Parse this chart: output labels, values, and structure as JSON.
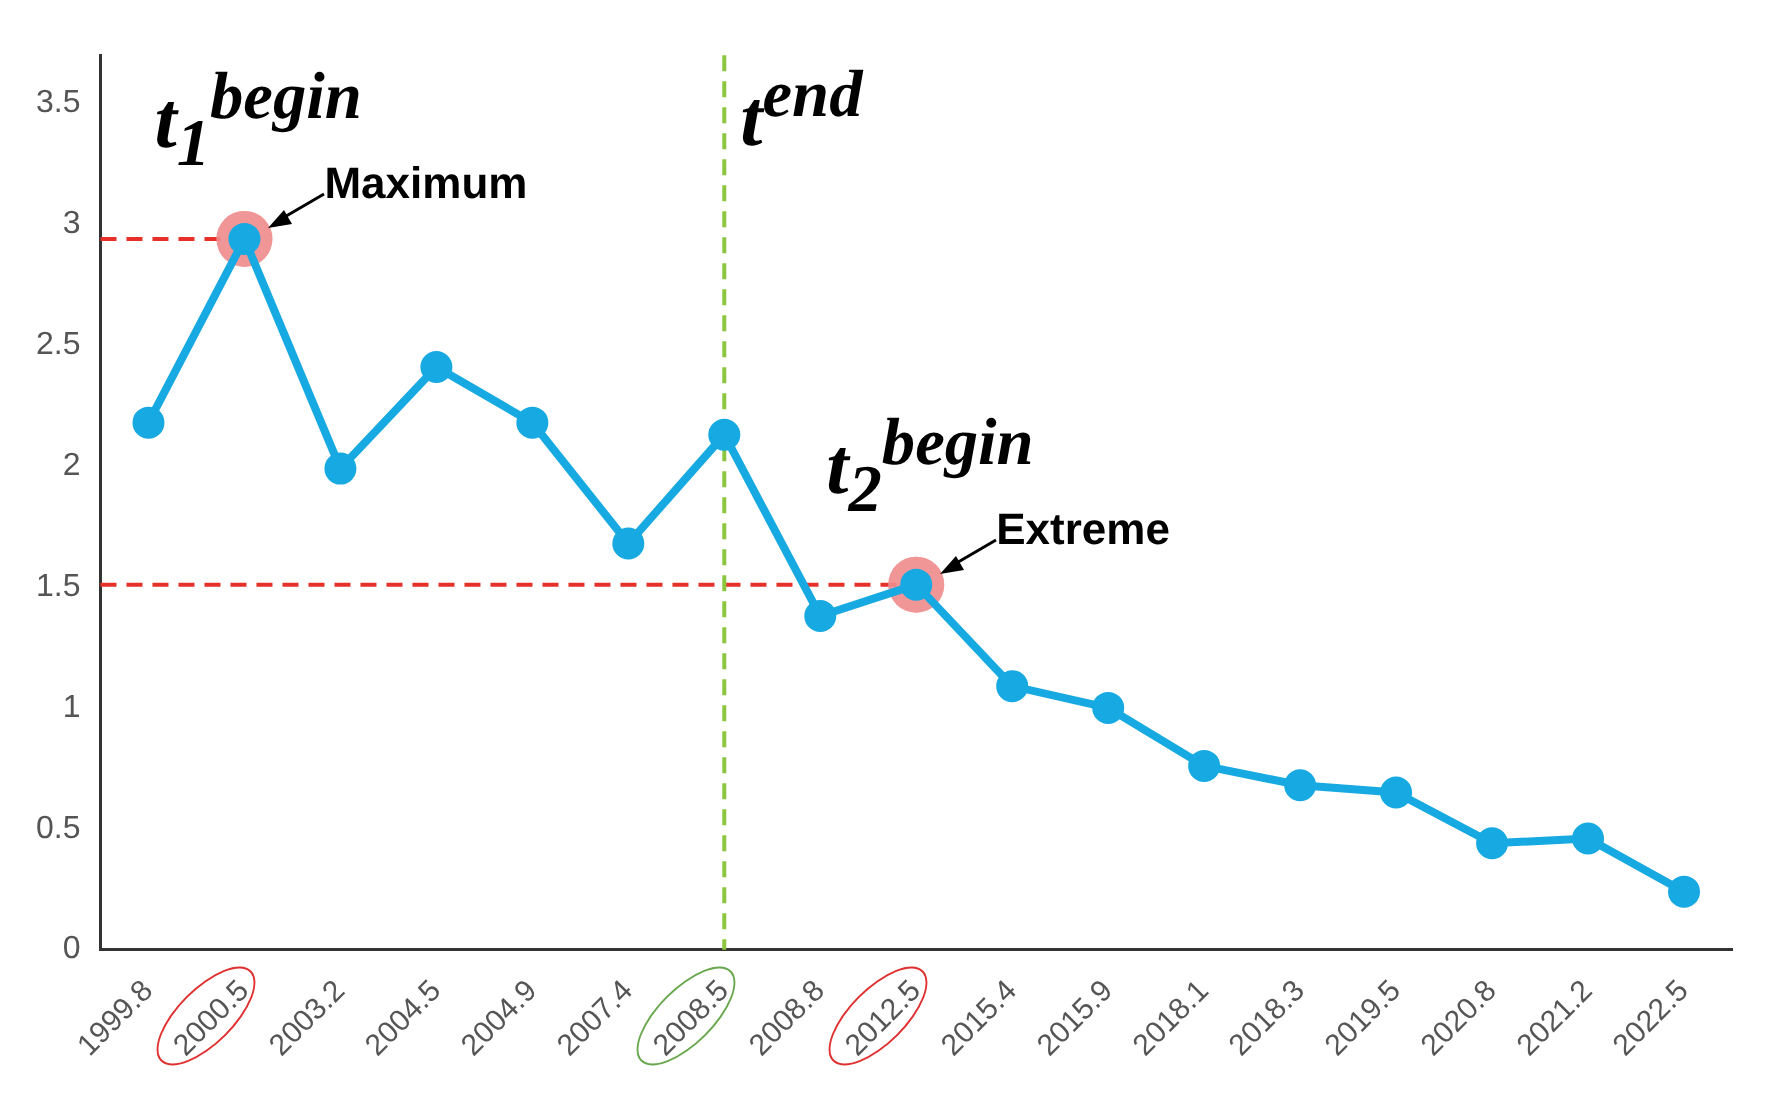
{
  "chart_data": {
    "type": "line",
    "categories": [
      "1999.8",
      "2000.5",
      "2003.2",
      "2004.5",
      "2004.9",
      "2007.4",
      "2008.5",
      "2008.8",
      "2012.5",
      "2015.4",
      "2015.9",
      "2018.1",
      "2018.3",
      "2019.5",
      "2020.8",
      "2021.2",
      "2022.5"
    ],
    "values": [
      2.18,
      2.94,
      1.99,
      2.41,
      2.18,
      1.68,
      2.13,
      1.38,
      1.51,
      1.09,
      1.0,
      0.76,
      0.68,
      0.65,
      0.44,
      0.46,
      0.24
    ],
    "color": "#17a9e1",
    "marker": "circle",
    "line_style": "solid",
    "ylim": [
      0,
      3.7
    ],
    "yticks": [
      0,
      0.5,
      1,
      1.5,
      2,
      2.5,
      3,
      3.5
    ],
    "grid": false,
    "legend": false,
    "ref_lines": [
      {
        "axis": "y",
        "value": 2.94,
        "color": "#e8302a",
        "line_style": "dashed"
      },
      {
        "axis": "y",
        "value": 1.51,
        "color": "#e8302a",
        "line_style": "dashed"
      },
      {
        "axis": "x",
        "value": "2008.5",
        "color": "#8cc63f",
        "line_style": "dashed"
      }
    ],
    "annotations": [
      {
        "text": "t$_{1}$$^{begin}$",
        "x": "2000.5",
        "y": 2.94
      },
      {
        "text": "Maximum",
        "x": "2000.5",
        "y": 2.94
      },
      {
        "text": "t$_{2}$$^{begin}$",
        "x": "2012.5",
        "y": 1.51
      },
      {
        "text": "Extreme",
        "x": "2012.5",
        "y": 1.51
      },
      {
        "text": "t$^{end}$",
        "x": "2008.5"
      }
    ]
  }
}
